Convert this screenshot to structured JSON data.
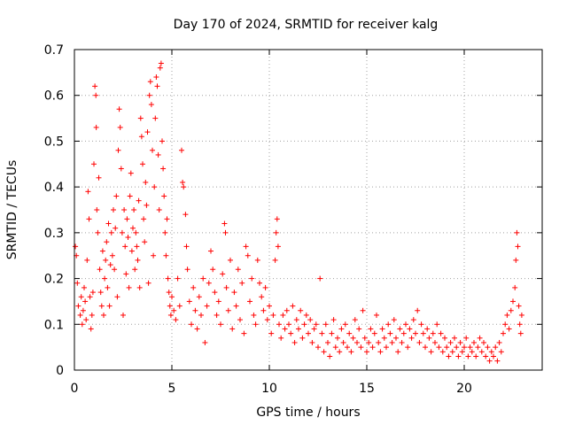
{
  "chart_data": {
    "type": "scatter",
    "title": "Day 170 of 2024, SRMTID for receiver kalg",
    "xlabel": "GPS time / hours",
    "ylabel": "SRMTID / TECUs",
    "xlim": [
      0,
      24
    ],
    "ylim": [
      0,
      0.7
    ],
    "xticks": [
      0,
      5,
      10,
      15,
      20
    ],
    "yticks": [
      0,
      0.1,
      0.2,
      0.3,
      0.4,
      0.5,
      0.6,
      0.7
    ],
    "xtick_labels": [
      "0",
      "5",
      "10",
      "15",
      "20"
    ],
    "ytick_labels": [
      "0",
      "0.1",
      "0.2",
      "0.3",
      "0.4",
      "0.5",
      "0.6",
      "0.7"
    ],
    "grid": true,
    "series": [
      {
        "name": "SRMTID",
        "color": "#ff0000",
        "marker": "plus",
        "points": [
          [
            0.05,
            0.27
          ],
          [
            0.1,
            0.25
          ],
          [
            0.15,
            0.19
          ],
          [
            0.2,
            0.14
          ],
          [
            0.3,
            0.12
          ],
          [
            0.35,
            0.16
          ],
          [
            0.4,
            0.1
          ],
          [
            0.45,
            0.13
          ],
          [
            0.5,
            0.18
          ],
          [
            0.55,
            0.15
          ],
          [
            0.6,
            0.11
          ],
          [
            0.65,
            0.24
          ],
          [
            0.7,
            0.39
          ],
          [
            0.75,
            0.33
          ],
          [
            0.8,
            0.16
          ],
          [
            0.85,
            0.09
          ],
          [
            0.9,
            0.12
          ],
          [
            0.95,
            0.17
          ],
          [
            1.0,
            0.45
          ],
          [
            1.05,
            0.62
          ],
          [
            1.1,
            0.6
          ],
          [
            1.12,
            0.53
          ],
          [
            1.15,
            0.35
          ],
          [
            1.2,
            0.3
          ],
          [
            1.25,
            0.42
          ],
          [
            1.3,
            0.22
          ],
          [
            1.35,
            0.17
          ],
          [
            1.4,
            0.14
          ],
          [
            1.45,
            0.26
          ],
          [
            1.5,
            0.12
          ],
          [
            1.55,
            0.2
          ],
          [
            1.6,
            0.24
          ],
          [
            1.65,
            0.28
          ],
          [
            1.7,
            0.18
          ],
          [
            1.75,
            0.32
          ],
          [
            1.8,
            0.14
          ],
          [
            1.85,
            0.23
          ],
          [
            1.9,
            0.3
          ],
          [
            1.95,
            0.25
          ],
          [
            2.0,
            0.35
          ],
          [
            2.05,
            0.22
          ],
          [
            2.1,
            0.31
          ],
          [
            2.15,
            0.38
          ],
          [
            2.2,
            0.16
          ],
          [
            2.25,
            0.48
          ],
          [
            2.3,
            0.57
          ],
          [
            2.35,
            0.53
          ],
          [
            2.4,
            0.44
          ],
          [
            2.45,
            0.3
          ],
          [
            2.5,
            0.12
          ],
          [
            2.55,
            0.35
          ],
          [
            2.6,
            0.27
          ],
          [
            2.65,
            0.21
          ],
          [
            2.7,
            0.33
          ],
          [
            2.75,
            0.29
          ],
          [
            2.8,
            0.18
          ],
          [
            2.85,
            0.38
          ],
          [
            2.9,
            0.43
          ],
          [
            2.95,
            0.26
          ],
          [
            3.0,
            0.31
          ],
          [
            3.05,
            0.35
          ],
          [
            3.1,
            0.22
          ],
          [
            3.15,
            0.3
          ],
          [
            3.2,
            0.27
          ],
          [
            3.25,
            0.24
          ],
          [
            3.3,
            0.37
          ],
          [
            3.35,
            0.18
          ],
          [
            3.4,
            0.55
          ],
          [
            3.45,
            0.51
          ],
          [
            3.5,
            0.45
          ],
          [
            3.55,
            0.33
          ],
          [
            3.6,
            0.28
          ],
          [
            3.65,
            0.41
          ],
          [
            3.7,
            0.36
          ],
          [
            3.75,
            0.52
          ],
          [
            3.8,
            0.19
          ],
          [
            3.85,
            0.6
          ],
          [
            3.9,
            0.63
          ],
          [
            3.95,
            0.58
          ],
          [
            4.0,
            0.48
          ],
          [
            4.05,
            0.25
          ],
          [
            4.1,
            0.4
          ],
          [
            4.15,
            0.55
          ],
          [
            4.2,
            0.64
          ],
          [
            4.25,
            0.62
          ],
          [
            4.3,
            0.47
          ],
          [
            4.35,
            0.35
          ],
          [
            4.4,
            0.66
          ],
          [
            4.45,
            0.67
          ],
          [
            4.5,
            0.5
          ],
          [
            4.55,
            0.44
          ],
          [
            4.6,
            0.38
          ],
          [
            4.65,
            0.3
          ],
          [
            4.7,
            0.25
          ],
          [
            4.75,
            0.33
          ],
          [
            4.8,
            0.2
          ],
          [
            4.85,
            0.17
          ],
          [
            4.9,
            0.14
          ],
          [
            4.95,
            0.12
          ],
          [
            5.0,
            0.16
          ],
          [
            5.1,
            0.13
          ],
          [
            5.2,
            0.11
          ],
          [
            5.3,
            0.2
          ],
          [
            5.4,
            0.14
          ],
          [
            5.5,
            0.48
          ],
          [
            5.55,
            0.41
          ],
          [
            5.6,
            0.4
          ],
          [
            5.7,
            0.34
          ],
          [
            5.75,
            0.27
          ],
          [
            5.8,
            0.22
          ],
          [
            5.9,
            0.15
          ],
          [
            6.0,
            0.1
          ],
          [
            6.1,
            0.18
          ],
          [
            6.2,
            0.13
          ],
          [
            6.3,
            0.09
          ],
          [
            6.4,
            0.16
          ],
          [
            6.5,
            0.12
          ],
          [
            6.6,
            0.2
          ],
          [
            6.7,
            0.06
          ],
          [
            6.8,
            0.14
          ],
          [
            6.9,
            0.19
          ],
          [
            7.0,
            0.26
          ],
          [
            7.1,
            0.22
          ],
          [
            7.2,
            0.17
          ],
          [
            7.3,
            0.12
          ],
          [
            7.4,
            0.15
          ],
          [
            7.5,
            0.1
          ],
          [
            7.6,
            0.21
          ],
          [
            7.7,
            0.32
          ],
          [
            7.75,
            0.3
          ],
          [
            7.8,
            0.18
          ],
          [
            7.9,
            0.13
          ],
          [
            8.0,
            0.24
          ],
          [
            8.1,
            0.09
          ],
          [
            8.2,
            0.17
          ],
          [
            8.3,
            0.14
          ],
          [
            8.4,
            0.22
          ],
          [
            8.5,
            0.11
          ],
          [
            8.6,
            0.19
          ],
          [
            8.7,
            0.08
          ],
          [
            8.8,
            0.27
          ],
          [
            8.9,
            0.25
          ],
          [
            9.0,
            0.15
          ],
          [
            9.1,
            0.2
          ],
          [
            9.2,
            0.12
          ],
          [
            9.3,
            0.1
          ],
          [
            9.4,
            0.24
          ],
          [
            9.5,
            0.19
          ],
          [
            9.6,
            0.16
          ],
          [
            9.7,
            0.13
          ],
          [
            9.8,
            0.18
          ],
          [
            9.9,
            0.11
          ],
          [
            10.0,
            0.14
          ],
          [
            10.1,
            0.08
          ],
          [
            10.2,
            0.12
          ],
          [
            10.3,
            0.24
          ],
          [
            10.35,
            0.3
          ],
          [
            10.4,
            0.33
          ],
          [
            10.45,
            0.27
          ],
          [
            10.5,
            0.1
          ],
          [
            10.6,
            0.07
          ],
          [
            10.7,
            0.12
          ],
          [
            10.8,
            0.09
          ],
          [
            10.9,
            0.13
          ],
          [
            11.0,
            0.1
          ],
          [
            11.1,
            0.08
          ],
          [
            11.2,
            0.14
          ],
          [
            11.3,
            0.06
          ],
          [
            11.4,
            0.11
          ],
          [
            11.5,
            0.09
          ],
          [
            11.6,
            0.13
          ],
          [
            11.7,
            0.07
          ],
          [
            11.8,
            0.1
          ],
          [
            11.9,
            0.12
          ],
          [
            12.0,
            0.08
          ],
          [
            12.1,
            0.11
          ],
          [
            12.2,
            0.06
          ],
          [
            12.3,
            0.09
          ],
          [
            12.4,
            0.1
          ],
          [
            12.5,
            0.05
          ],
          [
            12.6,
            0.2
          ],
          [
            12.7,
            0.08
          ],
          [
            12.8,
            0.04
          ],
          [
            12.9,
            0.1
          ],
          [
            13.0,
            0.06
          ],
          [
            13.1,
            0.03
          ],
          [
            13.2,
            0.08
          ],
          [
            13.3,
            0.11
          ],
          [
            13.4,
            0.05
          ],
          [
            13.5,
            0.07
          ],
          [
            13.6,
            0.04
          ],
          [
            13.7,
            0.09
          ],
          [
            13.8,
            0.06
          ],
          [
            13.9,
            0.1
          ],
          [
            14.0,
            0.05
          ],
          [
            14.1,
            0.08
          ],
          [
            14.2,
            0.04
          ],
          [
            14.3,
            0.07
          ],
          [
            14.4,
            0.11
          ],
          [
            14.5,
            0.06
          ],
          [
            14.6,
            0.09
          ],
          [
            14.7,
            0.05
          ],
          [
            14.8,
            0.13
          ],
          [
            14.9,
            0.07
          ],
          [
            15.0,
            0.04
          ],
          [
            15.1,
            0.06
          ],
          [
            15.2,
            0.09
          ],
          [
            15.3,
            0.05
          ],
          [
            15.4,
            0.08
          ],
          [
            15.5,
            0.12
          ],
          [
            15.6,
            0.06
          ],
          [
            15.7,
            0.04
          ],
          [
            15.8,
            0.09
          ],
          [
            15.9,
            0.07
          ],
          [
            16.0,
            0.05
          ],
          [
            16.1,
            0.1
          ],
          [
            16.2,
            0.08
          ],
          [
            16.3,
            0.06
          ],
          [
            16.4,
            0.11
          ],
          [
            16.5,
            0.07
          ],
          [
            16.6,
            0.04
          ],
          [
            16.7,
            0.09
          ],
          [
            16.8,
            0.06
          ],
          [
            16.9,
            0.08
          ],
          [
            17.0,
            0.1
          ],
          [
            17.1,
            0.05
          ],
          [
            17.2,
            0.09
          ],
          [
            17.3,
            0.07
          ],
          [
            17.4,
            0.11
          ],
          [
            17.5,
            0.08
          ],
          [
            17.6,
            0.13
          ],
          [
            17.7,
            0.06
          ],
          [
            17.8,
            0.1
          ],
          [
            17.9,
            0.08
          ],
          [
            18.0,
            0.05
          ],
          [
            18.1,
            0.09
          ],
          [
            18.2,
            0.07
          ],
          [
            18.3,
            0.04
          ],
          [
            18.4,
            0.08
          ],
          [
            18.5,
            0.06
          ],
          [
            18.6,
            0.1
          ],
          [
            18.7,
            0.05
          ],
          [
            18.8,
            0.08
          ],
          [
            18.9,
            0.04
          ],
          [
            19.0,
            0.07
          ],
          [
            19.1,
            0.05
          ],
          [
            19.2,
            0.03
          ],
          [
            19.3,
            0.06
          ],
          [
            19.4,
            0.04
          ],
          [
            19.5,
            0.07
          ],
          [
            19.6,
            0.05
          ],
          [
            19.7,
            0.03
          ],
          [
            19.8,
            0.06
          ],
          [
            19.9,
            0.04
          ],
          [
            20.0,
            0.05
          ],
          [
            20.1,
            0.07
          ],
          [
            20.2,
            0.03
          ],
          [
            20.3,
            0.05
          ],
          [
            20.4,
            0.04
          ],
          [
            20.5,
            0.06
          ],
          [
            20.6,
            0.03
          ],
          [
            20.7,
            0.05
          ],
          [
            20.8,
            0.07
          ],
          [
            20.9,
            0.04
          ],
          [
            21.0,
            0.06
          ],
          [
            21.1,
            0.03
          ],
          [
            21.2,
            0.05
          ],
          [
            21.3,
            0.02
          ],
          [
            21.4,
            0.04
          ],
          [
            21.5,
            0.03
          ],
          [
            21.6,
            0.05
          ],
          [
            21.7,
            0.02
          ],
          [
            21.8,
            0.06
          ],
          [
            21.9,
            0.04
          ],
          [
            22.0,
            0.08
          ],
          [
            22.1,
            0.1
          ],
          [
            22.2,
            0.12
          ],
          [
            22.3,
            0.09
          ],
          [
            22.4,
            0.13
          ],
          [
            22.5,
            0.15
          ],
          [
            22.6,
            0.18
          ],
          [
            22.65,
            0.24
          ],
          [
            22.7,
            0.3
          ],
          [
            22.75,
            0.27
          ],
          [
            22.8,
            0.14
          ],
          [
            22.85,
            0.1
          ],
          [
            22.9,
            0.08
          ],
          [
            22.95,
            0.12
          ]
        ]
      }
    ]
  }
}
